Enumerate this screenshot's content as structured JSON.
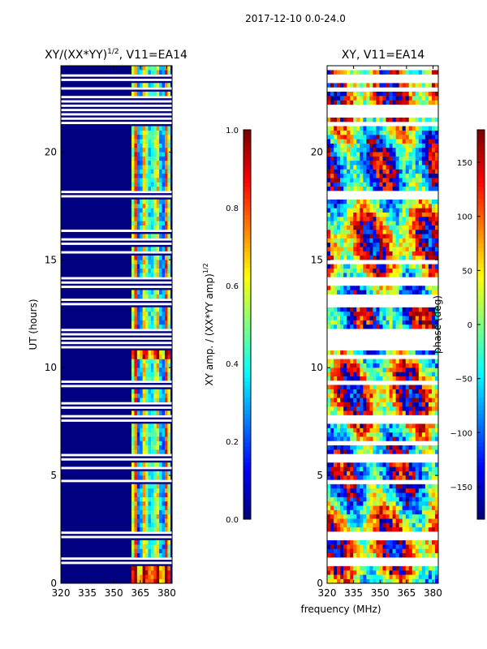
{
  "figure": {
    "suptitle": "2017-12-10 0.0-24.0",
    "shared_xlabel": "frequency (MHz)"
  },
  "chart_data": [
    {
      "type": "heatmap",
      "title": "XY/(XX*YY)^{1/2}, V11=EA14",
      "title_main": "XY/(XX*YY)",
      "title_exp": "1/2",
      "title_tail": ", V11=EA14",
      "xlabel": "frequency (MHz)",
      "ylabel": "UT (hours)",
      "xlim": [
        320,
        383
      ],
      "ylim": [
        0,
        24
      ],
      "xticks": [
        320,
        335,
        350,
        365,
        380
      ],
      "yticks": [
        0,
        5,
        10,
        15,
        20
      ],
      "colormap": "jet",
      "background_value": 0.0,
      "signal_band_mhz": [
        360,
        382
      ],
      "colorbar": {
        "label": "XY amp. / (XX*YY amp)^{1/2}",
        "label_main": "XY amp. / (XX*YY amp)",
        "label_exp": "1/2",
        "range": [
          0.0,
          1.0
        ],
        "ticks": [
          "0.0",
          "0.2",
          "0.4",
          "0.6",
          "0.8",
          "1.0"
        ]
      }
    },
    {
      "type": "heatmap",
      "title": "XY, V11=EA14",
      "xlabel": "frequency (MHz)",
      "ylabel": "",
      "xlim": [
        320,
        383
      ],
      "ylim": [
        0,
        24
      ],
      "xticks": [
        320,
        335,
        350,
        365,
        380
      ],
      "yticks": [
        0,
        5,
        10,
        15,
        20
      ],
      "colormap": "jet",
      "colorbar": {
        "label": "phase (deg)",
        "range": [
          -180,
          180
        ],
        "ticks": [
          "150",
          "100",
          "50",
          "0",
          "−50",
          "−100",
          "−150"
        ],
        "tick_values": [
          150,
          100,
          50,
          0,
          -50,
          -100,
          -150
        ]
      }
    }
  ],
  "flagged_hours": [
    0.9,
    1.0,
    2.2,
    2.35,
    5.7,
    5.85,
    7.6,
    9.3,
    11.0,
    11.4,
    11.6,
    13.0,
    13.9,
    14.05,
    17.9,
    18.0,
    18.1,
    21.7,
    21.8,
    21.9,
    22.0,
    22.9,
    23.4
  ]
}
